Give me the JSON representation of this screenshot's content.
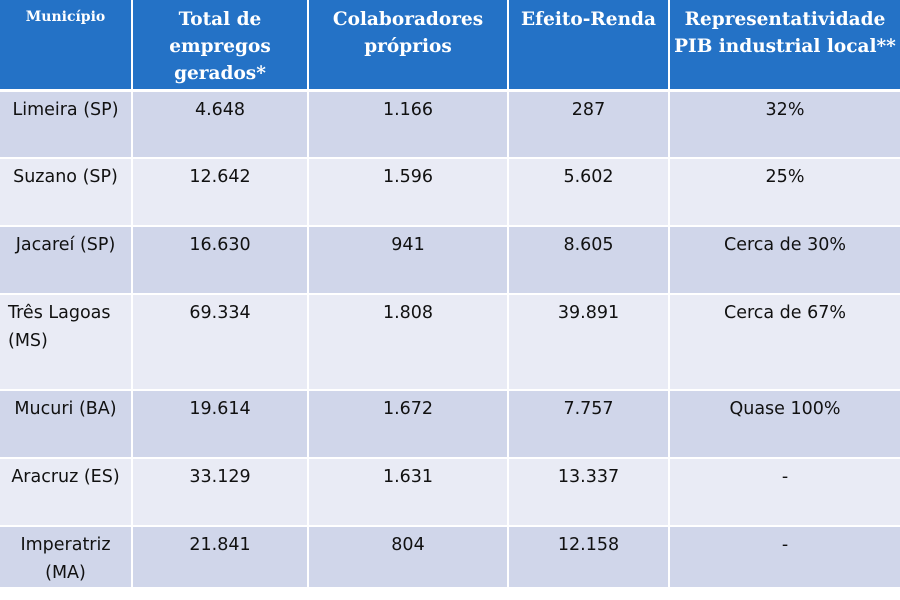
{
  "table": {
    "headers": [
      "Município",
      "Total de empregos gerados*",
      "Colaboradores próprios",
      "Efeito-Renda",
      "Representatividade PIB industrial local**"
    ],
    "rows": [
      {
        "municipio": "Limeira (SP)",
        "empregos": "4.648",
        "colaboradores": "1.166",
        "efeito_renda": "287",
        "representatividade": "32%"
      },
      {
        "municipio": "Suzano (SP)",
        "empregos": "12.642",
        "colaboradores": "1.596",
        "efeito_renda": "5.602",
        "representatividade": "25%"
      },
      {
        "municipio": "Jacareí (SP)",
        "empregos": "16.630",
        "colaboradores": "941",
        "efeito_renda": "8.605",
        "representatividade": "Cerca de 30%"
      },
      {
        "municipio": "Três Lagoas (MS)",
        "empregos": "69.334",
        "colaboradores": "1.808",
        "efeito_renda": "39.891",
        "representatividade": "Cerca de 67%"
      },
      {
        "municipio": "Mucuri (BA)",
        "empregos": "19.614",
        "colaboradores": "1.672",
        "efeito_renda": "7.757",
        "representatividade": "Quase 100%"
      },
      {
        "municipio": "Aracruz (ES)",
        "empregos": "33.129",
        "colaboradores": "1.631",
        "efeito_renda": "13.337",
        "representatividade": "-"
      },
      {
        "municipio": "Imperatriz (MA)",
        "empregos": "21.841",
        "colaboradores": "804",
        "efeito_renda": "12.158",
        "representatividade": "-"
      }
    ]
  }
}
